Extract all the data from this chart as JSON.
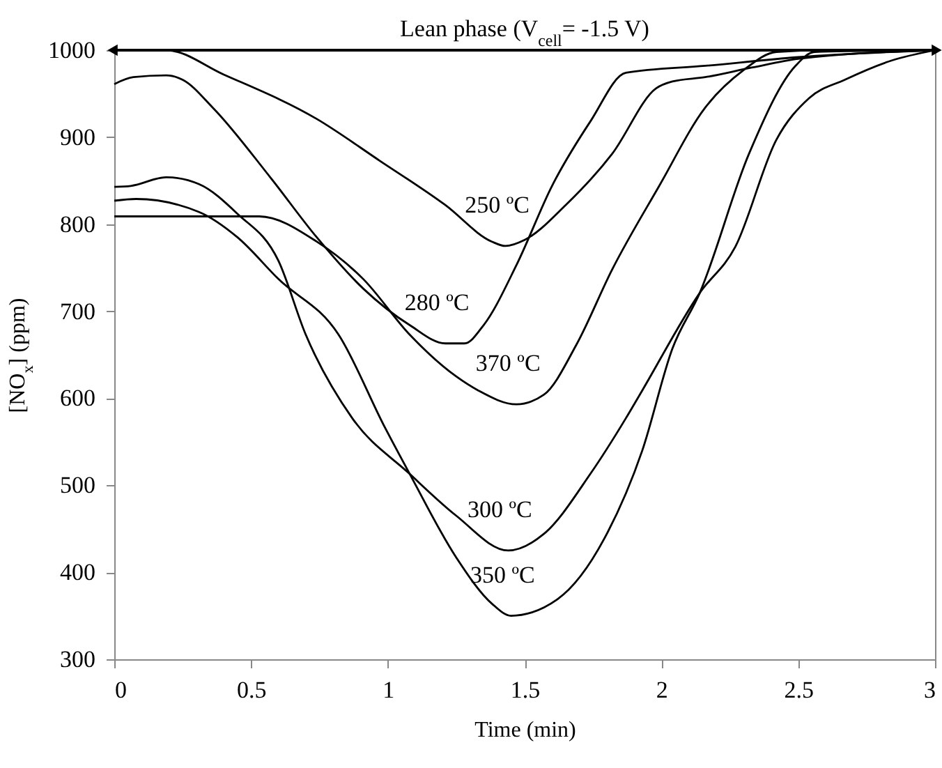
{
  "chart_data": {
    "type": "line",
    "xlabel": "Time (min)",
    "ylabel": "[NO$_{x}$] (ppm)",
    "annotations": [
      "Lean phase (V$_{cell}$= -1.5 V)"
    ],
    "xlim": [
      0,
      3
    ],
    "ylim": [
      300,
      1000
    ],
    "xticks": [
      0,
      0.5,
      1,
      1.5,
      2,
      2.5,
      3
    ],
    "yticks": [
      300,
      400,
      500,
      600,
      700,
      800,
      900,
      1000
    ],
    "grid": false,
    "legend": false,
    "marker": "none",
    "line_style": "solid",
    "series": [
      {
        "name": "250 ºC",
        "color": "#000000",
        "x": [
          0,
          0.19,
          0.4,
          0.74,
          0.97,
          1.21,
          1.38,
          1.43,
          1.5,
          1.65,
          1.82,
          1.98,
          2.04,
          2.16,
          2.33,
          2.5,
          3
        ],
        "values": [
          1000,
          1000,
          972,
          921,
          873,
          822,
          780,
          775,
          782,
          822,
          881,
          956,
          964,
          969,
          980,
          990,
          1000
        ]
      },
      {
        "name": "280 ºC",
        "color": "#000000",
        "x": [
          0,
          0.07,
          0.19,
          0.25,
          0.36,
          0.57,
          0.74,
          0.91,
          1.08,
          1.21,
          1.28,
          1.35,
          1.47,
          1.6,
          1.74,
          1.87,
          2.16,
          2.5,
          3
        ],
        "values": [
          961,
          969,
          971,
          966,
          934,
          854,
          785,
          726,
          684,
          663,
          663,
          684,
          753,
          844,
          918,
          974,
          982,
          992,
          1000
        ]
      },
      {
        "name": "370 ºC",
        "color": "#000000",
        "x": [
          0,
          0.53,
          0.74,
          0.91,
          1.08,
          1.25,
          1.33,
          1.47,
          1.57,
          1.69,
          1.82,
          1.99,
          2.16,
          2.3,
          2.42,
          2.6,
          3
        ],
        "values": [
          809,
          809,
          780,
          737,
          673,
          625,
          609,
          593,
          604,
          662,
          748,
          843,
          934,
          977,
          998,
          1000,
          1000
        ]
      },
      {
        "name": "300 ºC",
        "color": "#000000",
        "x": [
          0,
          0.06,
          0.19,
          0.31,
          0.45,
          0.6,
          0.7,
          0.87,
          1.08,
          1.25,
          1.44,
          1.57,
          1.74,
          1.87,
          1.93,
          2.14,
          2.27,
          2.42,
          2.54,
          2.67,
          2.84,
          3
        ],
        "values": [
          843,
          844,
          854,
          846,
          812,
          758,
          673,
          577,
          513,
          465,
          425,
          444,
          513,
          577,
          609,
          721,
          774,
          897,
          945,
          966,
          988,
          1000
        ]
      },
      {
        "name": "350 ºC",
        "color": "#000000",
        "x": [
          0,
          0.08,
          0.31,
          0.45,
          0.6,
          0.82,
          0.99,
          1.08,
          1.25,
          1.38,
          1.45,
          1.62,
          1.79,
          1.93,
          2.04,
          2.14,
          2.32,
          2.49,
          2.56,
          3
        ],
        "values": [
          827,
          829,
          814,
          785,
          737,
          673,
          566,
          513,
          417,
          364,
          350,
          369,
          438,
          540,
          657,
          721,
          881,
          982,
          998,
          1000
        ]
      }
    ]
  }
}
